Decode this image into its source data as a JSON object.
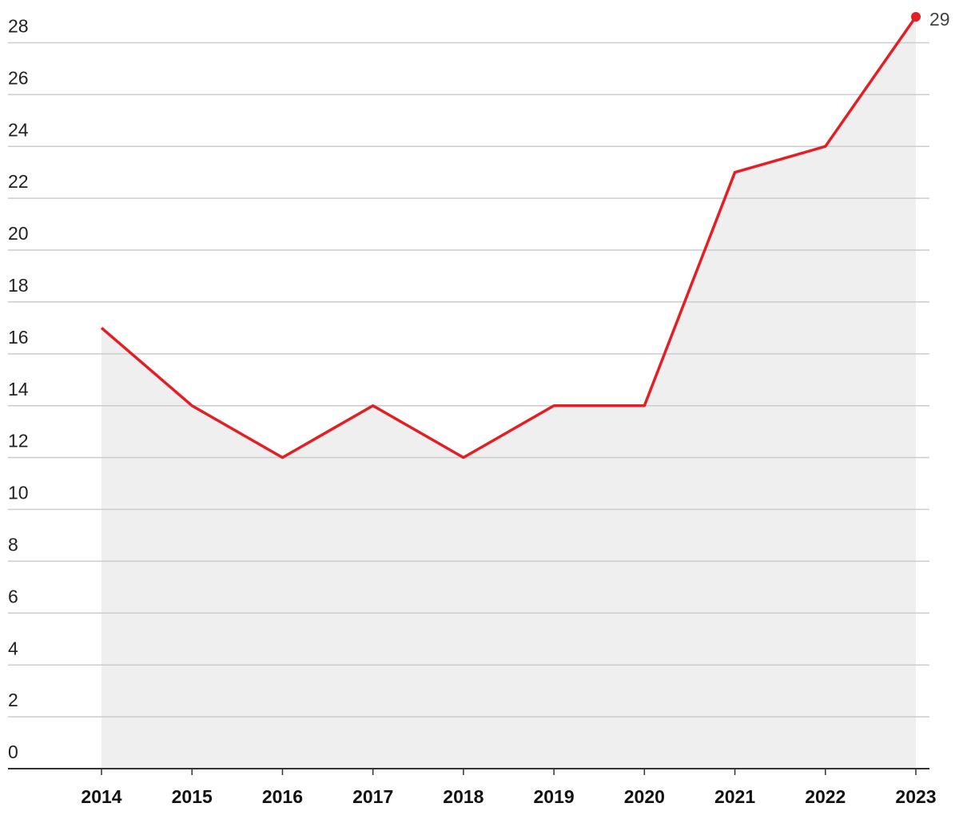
{
  "chart_data": {
    "type": "line",
    "categories": [
      "2014",
      "2015",
      "2016",
      "2017",
      "2018",
      "2019",
      "2020",
      "2021",
      "2022",
      "2023"
    ],
    "values": [
      17,
      14,
      12,
      14,
      12,
      14,
      14,
      23,
      24,
      29
    ],
    "color": "#e31e24",
    "area_color": "#efefef",
    "ylim": [
      0,
      29
    ],
    "yticks": [
      0,
      2,
      4,
      6,
      8,
      10,
      12,
      14,
      16,
      18,
      20,
      22,
      24,
      26,
      28
    ],
    "grid": true
  }
}
